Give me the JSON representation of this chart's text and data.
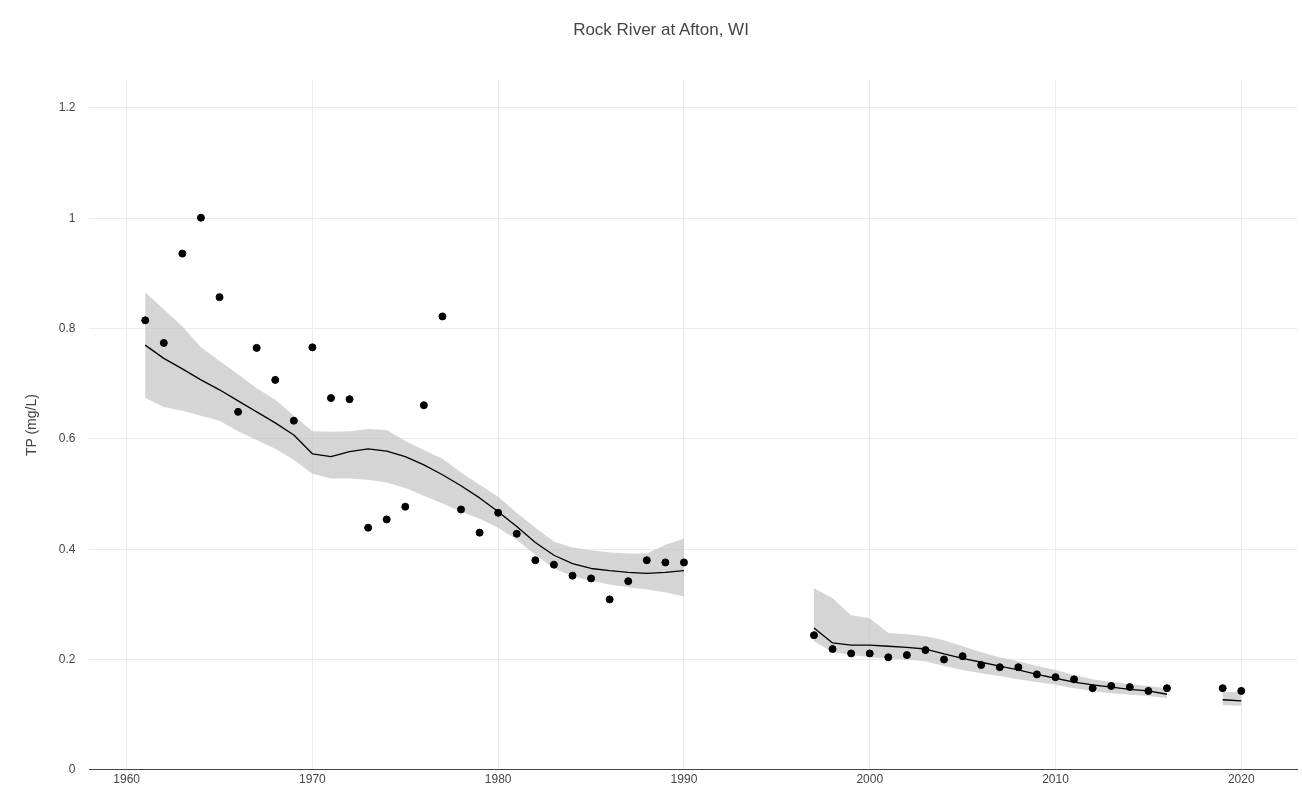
{
  "chart_data": {
    "type": "scatter",
    "title": "Rock River at Afton, WI",
    "ylabel": "TP (mg/L)",
    "xlim": [
      1958,
      2023
    ],
    "xticks": [
      1960,
      1970,
      1980,
      1990,
      2000,
      2010,
      2020
    ],
    "ylim": [
      0,
      1.25
    ],
    "yticks": [
      0,
      0.2,
      0.4,
      0.6,
      0.8,
      1,
      1.2
    ],
    "grid": true,
    "legend": false,
    "marker": "circle",
    "series": [
      {
        "type": "line",
        "color": "#000000",
        "line_style": "solid",
        "marker": "none",
        "x": [
          1961,
          1962,
          1963,
          1964,
          1965,
          1966,
          1967,
          1968,
          1969,
          1970,
          1971,
          1972,
          1973,
          1974,
          1975,
          1976,
          1977,
          1978,
          1979,
          1980,
          1981,
          1982,
          1983,
          1984,
          1985,
          1986,
          1987,
          1988,
          1989,
          1990
        ],
        "values": [
          0.77,
          0.746,
          0.727,
          0.707,
          0.689,
          0.669,
          0.649,
          0.629,
          0.607,
          0.573,
          0.568,
          0.577,
          0.582,
          0.578,
          0.568,
          0.553,
          0.535,
          0.515,
          0.493,
          0.468,
          0.441,
          0.412,
          0.389,
          0.374,
          0.365,
          0.361,
          0.358,
          0.356,
          0.358,
          0.361
        ],
        "lower": [
          0.674,
          0.658,
          0.651,
          0.642,
          0.633,
          0.614,
          0.598,
          0.582,
          0.562,
          0.537,
          0.528,
          0.528,
          0.526,
          0.521,
          0.511,
          0.497,
          0.483,
          0.468,
          0.455,
          0.439,
          0.417,
          0.39,
          0.365,
          0.351,
          0.343,
          0.336,
          0.331,
          0.327,
          0.322,
          0.314
        ],
        "upper": [
          0.866,
          0.835,
          0.804,
          0.766,
          0.741,
          0.717,
          0.692,
          0.671,
          0.642,
          0.614,
          0.613,
          0.614,
          0.618,
          0.616,
          0.596,
          0.58,
          0.564,
          0.539,
          0.517,
          0.495,
          0.466,
          0.439,
          0.414,
          0.403,
          0.398,
          0.394,
          0.392,
          0.392,
          0.408,
          0.419
        ]
      },
      {
        "type": "line",
        "color": "#000000",
        "line_style": "solid",
        "marker": "none",
        "x": [
          1997,
          1998,
          1999,
          2000,
          2001,
          2002,
          2003,
          2004,
          2005,
          2006,
          2007,
          2008,
          2009,
          2010,
          2011,
          2012,
          2013,
          2014,
          2015,
          2016
        ],
        "values": [
          0.257,
          0.23,
          0.226,
          0.226,
          0.224,
          0.222,
          0.219,
          0.21,
          0.202,
          0.195,
          0.188,
          0.181,
          0.173,
          0.166,
          0.159,
          0.154,
          0.15,
          0.146,
          0.143,
          0.137
        ],
        "lower": [
          0.233,
          0.213,
          0.208,
          0.204,
          0.202,
          0.2,
          0.197,
          0.188,
          0.181,
          0.175,
          0.17,
          0.164,
          0.159,
          0.154,
          0.148,
          0.143,
          0.139,
          0.136,
          0.134,
          0.13
        ],
        "upper": [
          0.329,
          0.311,
          0.28,
          0.275,
          0.248,
          0.246,
          0.242,
          0.235,
          0.224,
          0.213,
          0.204,
          0.197,
          0.188,
          0.181,
          0.172,
          0.164,
          0.159,
          0.155,
          0.152,
          0.148
        ]
      },
      {
        "type": "line",
        "color": "#000000",
        "line_style": "solid",
        "marker": "none",
        "x": [
          2019,
          2020
        ],
        "values": [
          0.127,
          0.125
        ],
        "lower": [
          0.117,
          0.116
        ],
        "upper": [
          0.141,
          0.141
        ]
      },
      {
        "type": "scatter",
        "color": "#000000",
        "x": [
          1961,
          1962,
          1963,
          1964,
          1965,
          1966,
          1967,
          1968,
          1969,
          1970,
          1971,
          1972,
          1973,
          1974,
          1975,
          1976,
          1977,
          1978,
          1979,
          1980,
          1981,
          1982,
          1983,
          1984,
          1985,
          1986,
          1987,
          1988,
          1989,
          1990,
          1997,
          1998,
          1999,
          2000,
          2001,
          2002,
          2003,
          2004,
          2005,
          2006,
          2007,
          2008,
          2009,
          2010,
          2011,
          2012,
          2013,
          2014,
          2015,
          2016,
          2019,
          2020
        ],
        "values": [
          0.815,
          0.774,
          0.936,
          1.001,
          0.857,
          0.649,
          0.765,
          0.707,
          0.633,
          0.766,
          0.674,
          0.672,
          0.439,
          0.454,
          0.477,
          0.661,
          0.822,
          0.472,
          0.43,
          0.466,
          0.428,
          0.38,
          0.372,
          0.352,
          0.347,
          0.309,
          0.342,
          0.38,
          0.376,
          0.376,
          0.244,
          0.219,
          0.211,
          0.211,
          0.204,
          0.208,
          0.217,
          0.2,
          0.206,
          0.19,
          0.186,
          0.186,
          0.173,
          0.168,
          0.164,
          0.148,
          0.152,
          0.15,
          0.143,
          0.148,
          0.148,
          0.143
        ]
      }
    ]
  }
}
